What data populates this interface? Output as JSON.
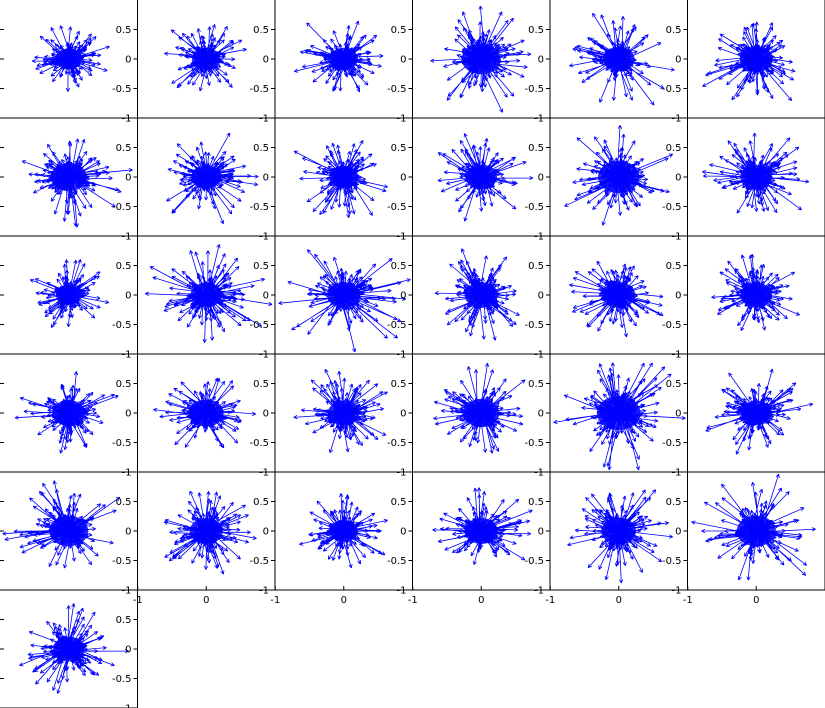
{
  "chart_data": {
    "type": "scatter",
    "description_note": "",
    "grid": false,
    "series_color": "#0000ff",
    "axis_color": "#000000",
    "y_ticks": [
      {
        "value": 0.5,
        "label": "0.5"
      },
      {
        "value": 0,
        "label": "0"
      },
      {
        "value": -0.5,
        "label": "-0.5"
      },
      {
        "value": -1,
        "label": "-1"
      }
    ],
    "x_ticks": [
      {
        "value": -1,
        "label": "-1"
      },
      {
        "value": 0,
        "label": "0"
      }
    ],
    "xlim": [
      -1,
      1
    ],
    "ylim": [
      -1,
      1
    ],
    "panels": [
      {
        "row": 0,
        "col": 0,
        "spread": 0.36,
        "max_len": 0.55
      },
      {
        "row": 0,
        "col": 1,
        "spread": 0.38,
        "max_len": 0.62
      },
      {
        "row": 0,
        "col": 2,
        "spread": 0.38,
        "max_len": 0.65
      },
      {
        "row": 0,
        "col": 3,
        "spread": 0.52,
        "max_len": 0.85
      },
      {
        "row": 0,
        "col": 4,
        "spread": 0.42,
        "max_len": 0.75
      },
      {
        "row": 0,
        "col": 5,
        "spread": 0.44,
        "max_len": 0.75
      },
      {
        "row": 1,
        "col": 0,
        "spread": 0.48,
        "max_len": 0.75
      },
      {
        "row": 1,
        "col": 1,
        "spread": 0.4,
        "max_len": 0.7
      },
      {
        "row": 1,
        "col": 2,
        "spread": 0.38,
        "max_len": 0.72
      },
      {
        "row": 1,
        "col": 3,
        "spread": 0.42,
        "max_len": 0.65
      },
      {
        "row": 1,
        "col": 4,
        "spread": 0.55,
        "max_len": 0.8
      },
      {
        "row": 1,
        "col": 5,
        "spread": 0.42,
        "max_len": 0.7
      },
      {
        "row": 2,
        "col": 0,
        "spread": 0.34,
        "max_len": 0.55
      },
      {
        "row": 2,
        "col": 1,
        "spread": 0.42,
        "max_len": 0.85
      },
      {
        "row": 2,
        "col": 2,
        "spread": 0.44,
        "max_len": 0.85
      },
      {
        "row": 2,
        "col": 3,
        "spread": 0.44,
        "max_len": 0.7
      },
      {
        "row": 2,
        "col": 4,
        "spread": 0.44,
        "max_len": 0.65
      },
      {
        "row": 2,
        "col": 5,
        "spread": 0.42,
        "max_len": 0.7
      },
      {
        "row": 3,
        "col": 0,
        "spread": 0.44,
        "max_len": 0.65
      },
      {
        "row": 3,
        "col": 1,
        "spread": 0.46,
        "max_len": 0.65
      },
      {
        "row": 3,
        "col": 2,
        "spread": 0.42,
        "max_len": 0.65
      },
      {
        "row": 3,
        "col": 3,
        "spread": 0.48,
        "max_len": 0.7
      },
      {
        "row": 3,
        "col": 4,
        "spread": 0.58,
        "max_len": 0.85
      },
      {
        "row": 3,
        "col": 5,
        "spread": 0.42,
        "max_len": 0.7
      },
      {
        "row": 4,
        "col": 0,
        "spread": 0.52,
        "max_len": 0.8
      },
      {
        "row": 4,
        "col": 1,
        "spread": 0.44,
        "max_len": 0.7
      },
      {
        "row": 4,
        "col": 2,
        "spread": 0.38,
        "max_len": 0.6
      },
      {
        "row": 4,
        "col": 3,
        "spread": 0.44,
        "max_len": 0.7
      },
      {
        "row": 4,
        "col": 4,
        "spread": 0.46,
        "max_len": 0.8
      },
      {
        "row": 4,
        "col": 5,
        "spread": 0.52,
        "max_len": 0.9
      },
      {
        "row": 5,
        "col": 0,
        "spread": 0.42,
        "max_len": 0.7
      }
    ]
  }
}
